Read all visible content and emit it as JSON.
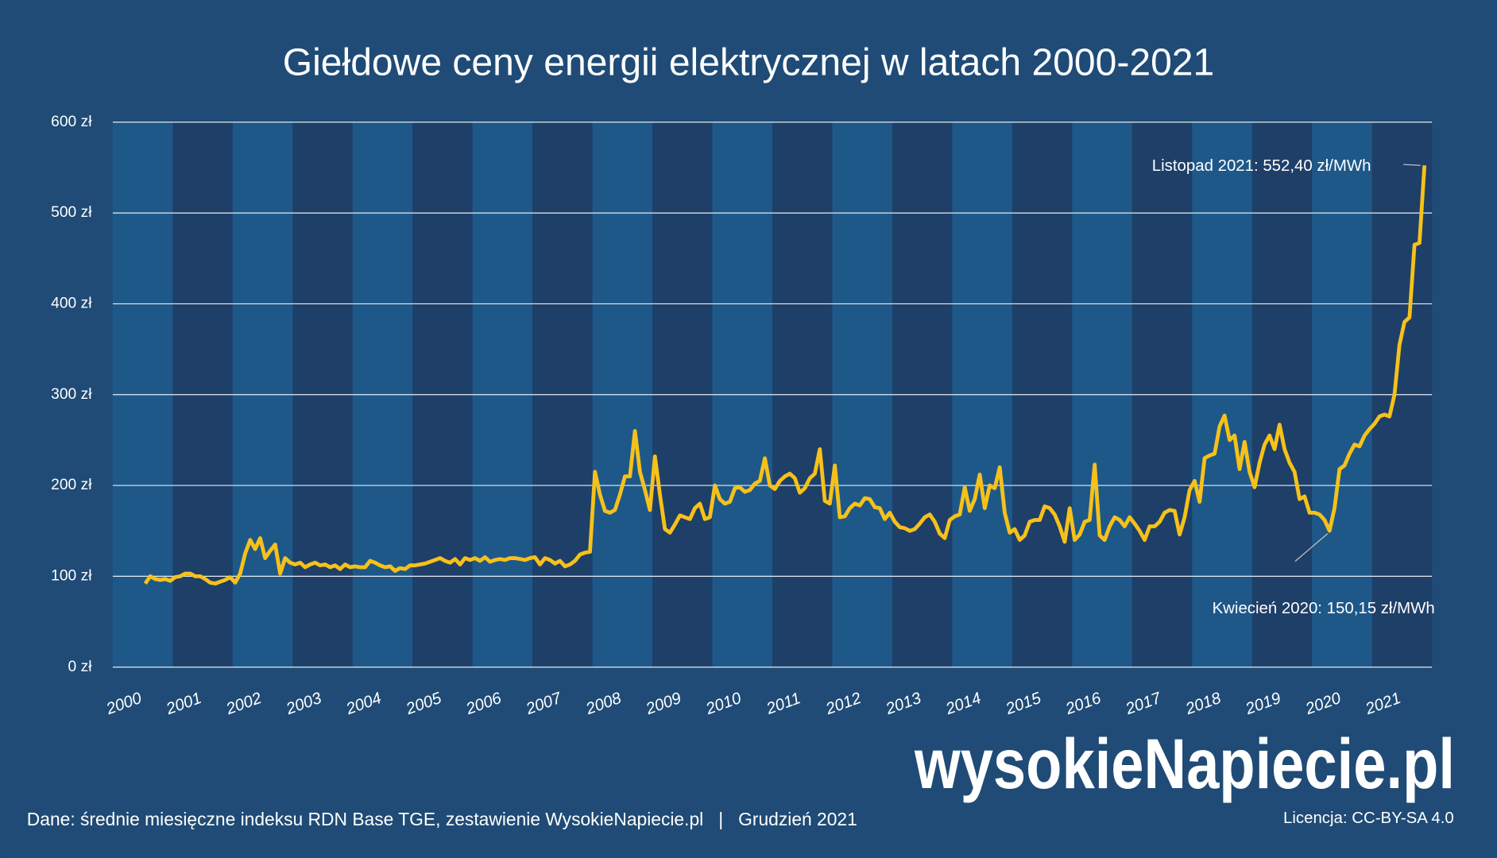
{
  "chart_data": {
    "type": "line",
    "title": "Giełdowe ceny energii elektrycznej w latach 2000-2021",
    "categories": [
      "2000",
      "2001",
      "2002",
      "2003",
      "2004",
      "2005",
      "2006",
      "2007",
      "2008",
      "2009",
      "2010",
      "2011",
      "2012",
      "2013",
      "2014",
      "2015",
      "2016",
      "2017",
      "2018",
      "2019",
      "2020",
      "2021"
    ],
    "values": [
      [
        null,
        null,
        null,
        null,
        null,
        null,
        92,
        100,
        97,
        96,
        97,
        95
      ],
      [
        99,
        100,
        103,
        103,
        100,
        100,
        97,
        93,
        92,
        94,
        96,
        99
      ],
      [
        93,
        103,
        125,
        140,
        130,
        142,
        120,
        128,
        135,
        103,
        120,
        115
      ],
      [
        113,
        115,
        110,
        113,
        115,
        112,
        113,
        110,
        112,
        108,
        113,
        110
      ],
      [
        111,
        110,
        110,
        117,
        115,
        112,
        110,
        111,
        106,
        109,
        108,
        112
      ],
      [
        112,
        113,
        114,
        116,
        118,
        120,
        117,
        115,
        119,
        113,
        120,
        118
      ],
      [
        120,
        117,
        121,
        116,
        118,
        119,
        118,
        120,
        120,
        119,
        118,
        120
      ],
      [
        121,
        113,
        120,
        118,
        114,
        117,
        111,
        113,
        117,
        124,
        126,
        127
      ],
      [
        215,
        190,
        172,
        170,
        173,
        190,
        210,
        210,
        260,
        215,
        195,
        173
      ],
      [
        232,
        190,
        152,
        148,
        157,
        167,
        165,
        163,
        175,
        180,
        163,
        165
      ],
      [
        200,
        185,
        180,
        182,
        197,
        198,
        193,
        195,
        202,
        205,
        230,
        200
      ],
      [
        196,
        205,
        210,
        213,
        208,
        192,
        197,
        208,
        213,
        240,
        183,
        180
      ],
      [
        222,
        165,
        166,
        175,
        180,
        178,
        186,
        185,
        176,
        175,
        163,
        170
      ],
      [
        160,
        154,
        153,
        150,
        152,
        158,
        165,
        168,
        160,
        147,
        142,
        162
      ],
      [
        166,
        168,
        198,
        172,
        185,
        212,
        175,
        200,
        197,
        220,
        170,
        148
      ],
      [
        152,
        140,
        145,
        160,
        162,
        162,
        177,
        175,
        168,
        155,
        138,
        175
      ],
      [
        140,
        146,
        160,
        162,
        223,
        145,
        140,
        155,
        165,
        162,
        155,
        165
      ],
      [
        158,
        150,
        140,
        155,
        155,
        160,
        170,
        173,
        172,
        146,
        165,
        195
      ],
      [
        205,
        182,
        230,
        233,
        235,
        265,
        277,
        250,
        255,
        218,
        248,
        215
      ],
      [
        198,
        225,
        245,
        255,
        240,
        267,
        240,
        225,
        215,
        185,
        188,
        170
      ],
      [
        170,
        168,
        162,
        150.15,
        175,
        218,
        222,
        235,
        245,
        243,
        255,
        262
      ],
      [
        268,
        276,
        278,
        276,
        300,
        355,
        380,
        385,
        465,
        467,
        552.4
      ]
    ],
    "color": "#f6c11a",
    "ylim": [
      0,
      600
    ],
    "yticks": [
      {
        "value": 0,
        "label": "0 zł"
      },
      {
        "value": 100,
        "label": "100 zł"
      },
      {
        "value": 200,
        "label": "200 zł"
      },
      {
        "value": 300,
        "label": "300 zł"
      },
      {
        "value": 400,
        "label": "400 zł"
      },
      {
        "value": 500,
        "label": "500 zł"
      },
      {
        "value": 600,
        "label": "600 zł"
      }
    ],
    "grid": true,
    "annotations": [
      {
        "text": "Listopad 2021: 552,40 zł/MWh",
        "category": 21,
        "month": 10
      },
      {
        "text": "Kwiecień 2020: 150,15 zł/MWh",
        "category": 20,
        "month": 3
      }
    ],
    "source": "Dane: średnie miesięczne indeksu RDN Base TGE, zestawienie WysokieNapiecie.pl   |   Grudzień 2021",
    "license": "Licencja: CC-BY-SA 4.0",
    "logo": "wysokieNapiecie.pl"
  }
}
